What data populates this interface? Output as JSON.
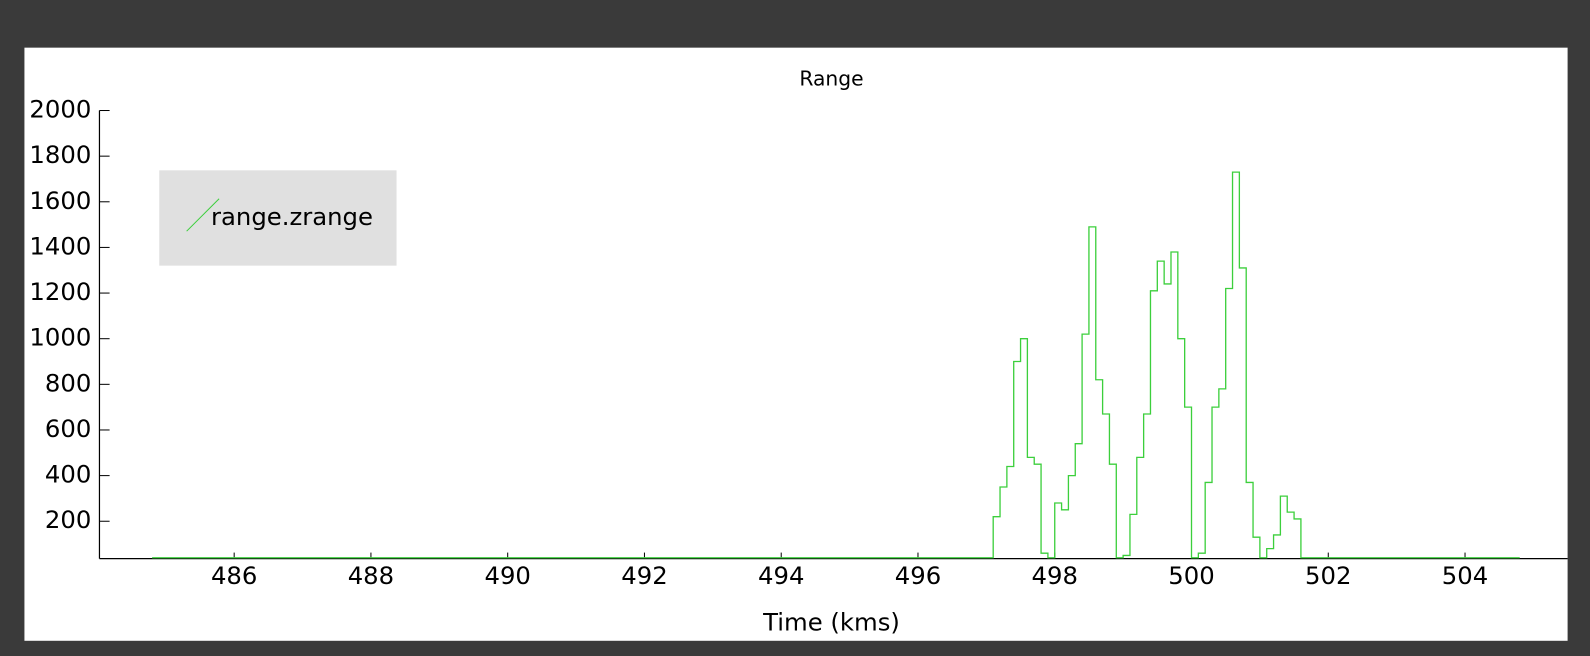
{
  "chart_data": {
    "type": "step-line",
    "title": "Range",
    "x_label": "Time (kms)",
    "xlim": [
      484.03,
      505.5
    ],
    "ylim": [
      36,
      2000
    ],
    "xticks": [
      486,
      488,
      490,
      492,
      494,
      496,
      498,
      500,
      502,
      504
    ],
    "yticks": [
      200,
      400,
      600,
      800,
      1000,
      1200,
      1400,
      1600,
      1800,
      2000
    ],
    "legend": "upper left",
    "series": [
      {
        "name": "range.zrange",
        "color": "#3ccf3c",
        "x": [
          484.8,
          497.0,
          497.1,
          497.2,
          497.3,
          497.4,
          497.5,
          497.6,
          497.7,
          497.8,
          497.9,
          498.0,
          498.1,
          498.2,
          498.3,
          498.4,
          498.5,
          498.6,
          498.7,
          498.8,
          498.9,
          499.0,
          499.1,
          499.2,
          499.3,
          499.4,
          499.5,
          499.6,
          499.7,
          499.8,
          499.9,
          500.0,
          500.1,
          500.2,
          500.3,
          500.4,
          500.5,
          500.6,
          500.7,
          500.8,
          500.9,
          501.0,
          501.1,
          501.2,
          501.3,
          501.4,
          501.5,
          501.6,
          504.8
        ],
        "values": [
          40,
          40,
          220,
          350,
          440,
          900,
          1000,
          480,
          450,
          60,
          40,
          280,
          250,
          400,
          540,
          1020,
          1490,
          820,
          670,
          450,
          40,
          50,
          230,
          480,
          670,
          1210,
          1340,
          1240,
          1380,
          1000,
          700,
          40,
          60,
          370,
          700,
          780,
          1220,
          1730,
          1310,
          370,
          130,
          40,
          80,
          140,
          310,
          240,
          210,
          40,
          40
        ]
      }
    ]
  }
}
